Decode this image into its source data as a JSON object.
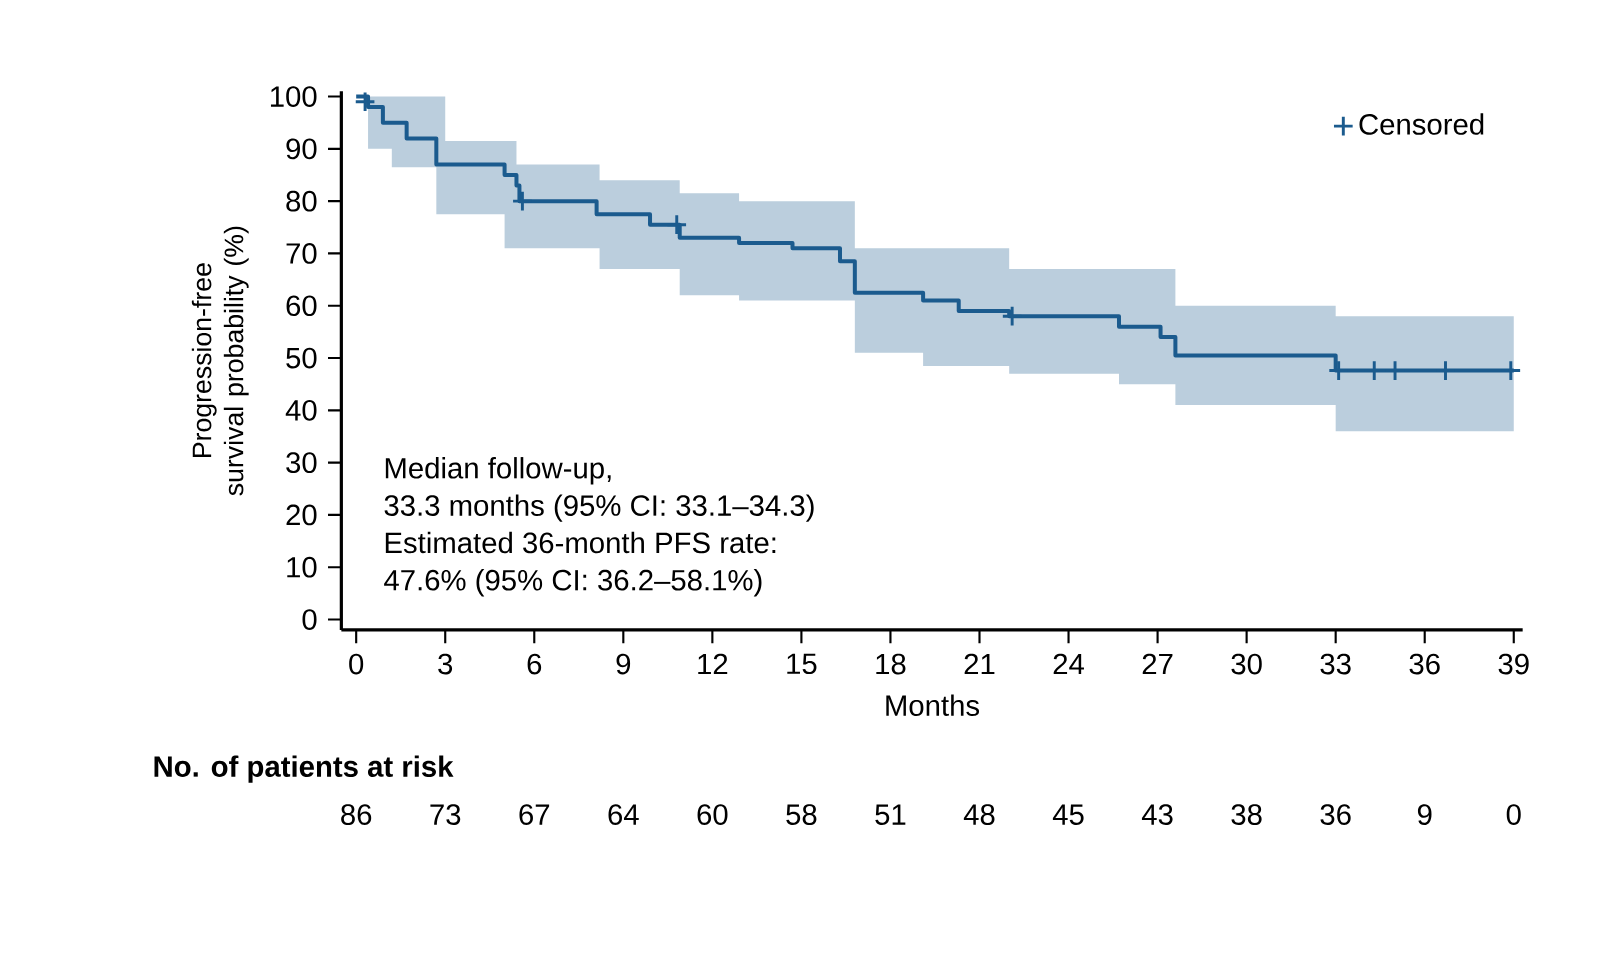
{
  "chart_data": {
    "type": "step",
    "xlabel": "Months",
    "ylabel": "Progression-free survival probability (%)",
    "xlim": [
      -0.5,
      39.3
    ],
    "ylim": [
      -2,
      101
    ],
    "xticks": [
      0,
      3,
      6,
      9,
      12,
      15,
      18,
      21,
      24,
      27,
      30,
      33,
      36,
      39
    ],
    "yticks": [
      0,
      10,
      20,
      30,
      40,
      50,
      60,
      70,
      80,
      90,
      100
    ],
    "grid": false,
    "legend": "top right",
    "series": [
      {
        "color": "#1b5b8e",
        "x": [
          0,
          0.4,
          0.9,
          1.2,
          1.7,
          2.7,
          3.0,
          5.0,
          5.4,
          5.5,
          8.1,
          8.2,
          9.9,
          10.9,
          12.9,
          14.7,
          16.3,
          16.8,
          19.1,
          20.3,
          22,
          25.7,
          27.1,
          27.6,
          33,
          39
        ],
        "values": [
          100,
          98,
          95,
          95,
          92,
          87,
          87,
          85,
          83,
          80,
          77.5,
          77.5,
          75.5,
          73,
          72,
          71,
          68.5,
          62.5,
          61,
          59,
          58,
          56,
          54,
          50.5,
          47.6,
          47.6
        ],
        "upper": [
          100,
          100,
          100,
          100,
          100,
          100,
          91.5,
          91.5,
          87,
          87,
          87,
          84,
          84,
          81.5,
          80,
          80,
          80,
          71,
          71,
          71,
          67,
          67,
          67,
          60,
          58,
          58
        ],
        "lower": [
          100,
          90,
          90,
          86.5,
          86.5,
          77.5,
          77.5,
          71,
          71,
          71,
          71,
          67,
          67,
          62,
          61,
          61,
          61,
          51,
          48.5,
          48.5,
          47,
          45,
          45,
          41,
          36,
          36
        ]
      },
      {
        "type": "scatter",
        "name": "Censored",
        "color": "#1b5b8e",
        "marker": "cross",
        "x": [
          0.3,
          5.6,
          10.8,
          22.1,
          33.1,
          34.3,
          35,
          36.7,
          38.9
        ],
        "values": [
          99,
          80,
          75.5,
          58,
          47.6,
          47.6,
          47.6,
          47.6,
          47.6
        ]
      }
    ],
    "annotations": [
      "Median follow-up,",
      "33.3 months (95% CI: 33.1–34.3)",
      "Estimated 36-month PFS rate:",
      "47.6% (95% CI: 36.2–58.1%)",
      "**No. of patients at risk**",
      "86",
      "73",
      "67",
      "64",
      "60",
      "58",
      "51",
      "48",
      "45",
      "43",
      "38",
      "36",
      "9",
      "0"
    ]
  }
}
